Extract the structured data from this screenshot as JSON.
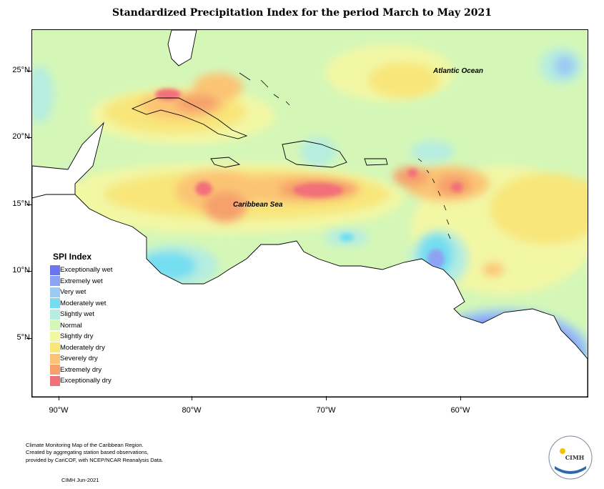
{
  "title": "Standardized Precipitation Index for the period March to May 2021",
  "map": {
    "lat_labels": [
      "25°N",
      "20°N",
      "15°N",
      "10°N",
      "5°N"
    ],
    "lon_labels": [
      "90°W",
      "80°W",
      "70°W",
      "60°W"
    ],
    "regions": {
      "atlantic": "Atlantic Ocean",
      "caribbean": "Caribbean Sea"
    }
  },
  "legend": {
    "title": "SPI Index",
    "items": [
      {
        "label": "Exceptionally wet",
        "color": "#6a75ee"
      },
      {
        "label": "Extremely wet",
        "color": "#8ca3f4"
      },
      {
        "label": "Very wet",
        "color": "#9ccaf3"
      },
      {
        "label": "Moderately wet",
        "color": "#74def0"
      },
      {
        "label": "Slightly wet",
        "color": "#b6ede0"
      },
      {
        "label": "Normal",
        "color": "#d4f7b8"
      },
      {
        "label": "Slightly dry",
        "color": "#f2f7a4"
      },
      {
        "label": "Moderately dry",
        "color": "#f8e67a"
      },
      {
        "label": "Severely dry",
        "color": "#fbc474"
      },
      {
        "label": "Extremely dry",
        "color": "#f6a06c"
      },
      {
        "label": "Exceptionally dry",
        "color": "#f2707a"
      }
    ]
  },
  "footer": {
    "line1": "Climate Monitoring Map of the Caribbean Region.",
    "line2": "Created by aggregating station based observations,",
    "line3": "provided by CariCOF, with NCEP/NCAR Reanalysis Data.",
    "date": "CIMH Jun-2021"
  },
  "logo": {
    "text": "CIMH"
  }
}
